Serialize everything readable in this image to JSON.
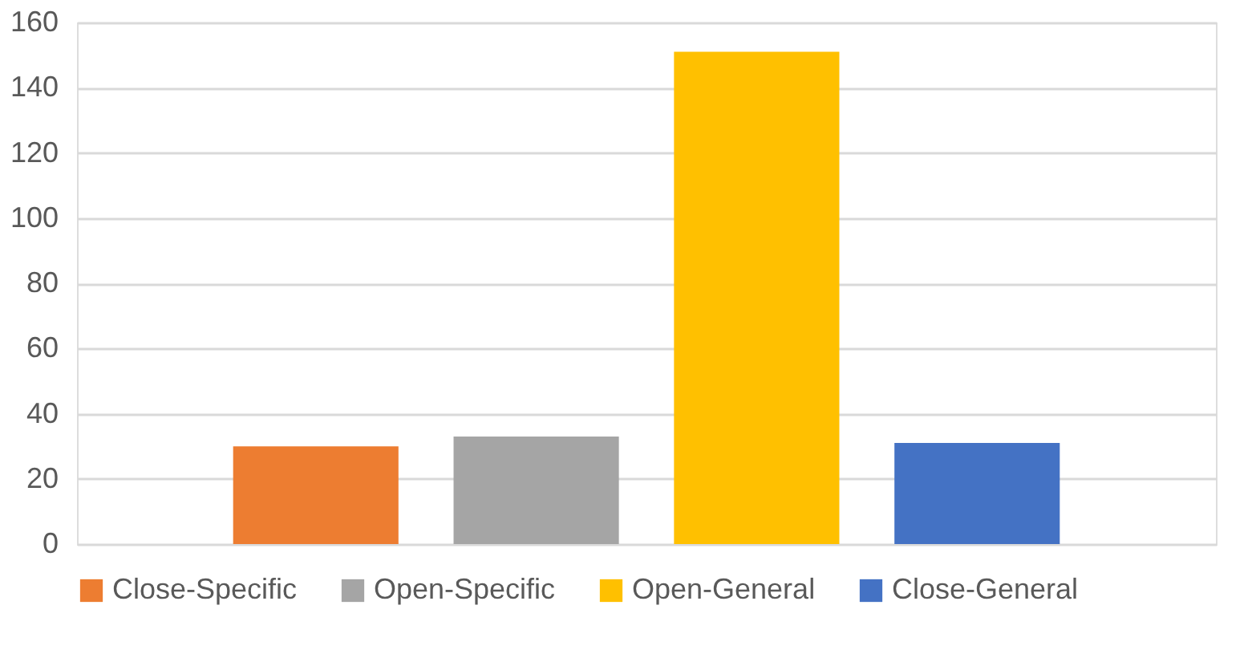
{
  "chart_data": {
    "type": "bar",
    "categories": [
      null
    ],
    "series": [
      {
        "name": "Close-Specific",
        "color": "#ed7d31",
        "values": [
          30
        ]
      },
      {
        "name": "Open-Specific",
        "color": "#a5a5a5",
        "values": [
          33
        ]
      },
      {
        "name": "Open-General",
        "color": "#ffc000",
        "values": [
          151
        ]
      },
      {
        "name": "Close-General",
        "color": "#4472c4",
        "values": [
          31
        ]
      }
    ],
    "ylim": [
      0,
      160
    ],
    "yticks": [
      0,
      20,
      40,
      60,
      80,
      100,
      120,
      140,
      160
    ],
    "grid": "y",
    "legend": "bottom",
    "tick_labels": "y"
  }
}
